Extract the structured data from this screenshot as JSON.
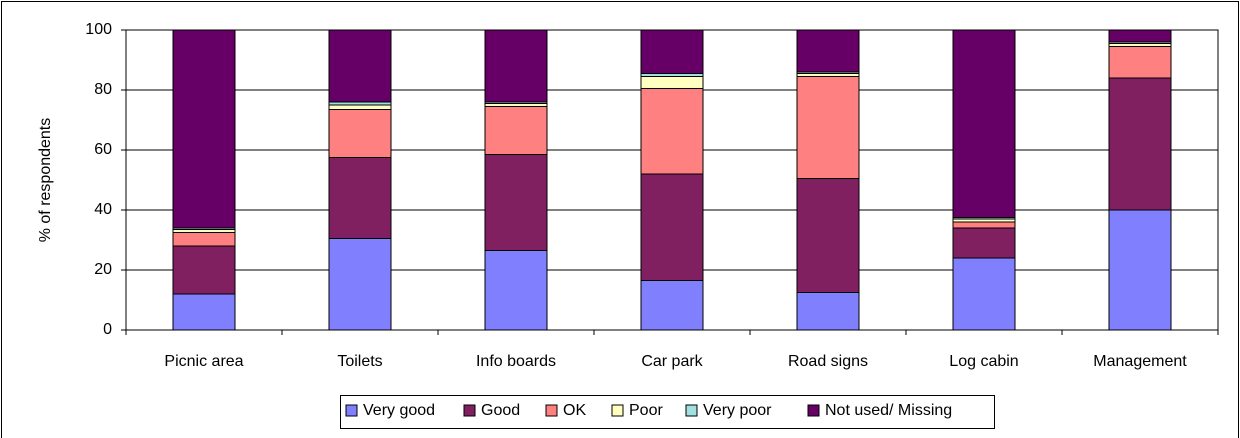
{
  "chart_data": {
    "type": "bar",
    "stacked": true,
    "ylabel": "% of respondents",
    "categories": [
      "Picnic area",
      "Toilets",
      "Info boards",
      "Car park",
      "Road signs",
      "Log cabin",
      "Management"
    ],
    "series": [
      {
        "name": "Very good",
        "color": "#8080ff",
        "values": [
          12,
          30.5,
          26.5,
          16.5,
          12.5,
          24,
          40
        ]
      },
      {
        "name": "Good",
        "color": "#802060",
        "values": [
          16,
          27,
          32,
          35.5,
          38,
          10,
          44
        ]
      },
      {
        "name": "OK",
        "color": "#ff8080",
        "values": [
          4.5,
          16,
          16,
          28.5,
          34,
          2,
          10.5
        ]
      },
      {
        "name": "Poor",
        "color": "#ffffc0",
        "values": [
          1,
          1.5,
          1,
          4,
          1,
          1,
          1
        ]
      },
      {
        "name": "Very poor",
        "color": "#a0e0e0",
        "values": [
          0.5,
          1,
          0.5,
          1,
          0.5,
          0.5,
          0.5
        ]
      },
      {
        "name": "Not used/ Missing",
        "color": "#660066",
        "values": [
          66,
          24,
          24,
          14.5,
          14,
          62.5,
          4
        ]
      }
    ],
    "ylim": [
      0,
      100
    ],
    "yticks": [
      0,
      20,
      40,
      60,
      80,
      100
    ],
    "grid": true,
    "legend": "bottom"
  }
}
